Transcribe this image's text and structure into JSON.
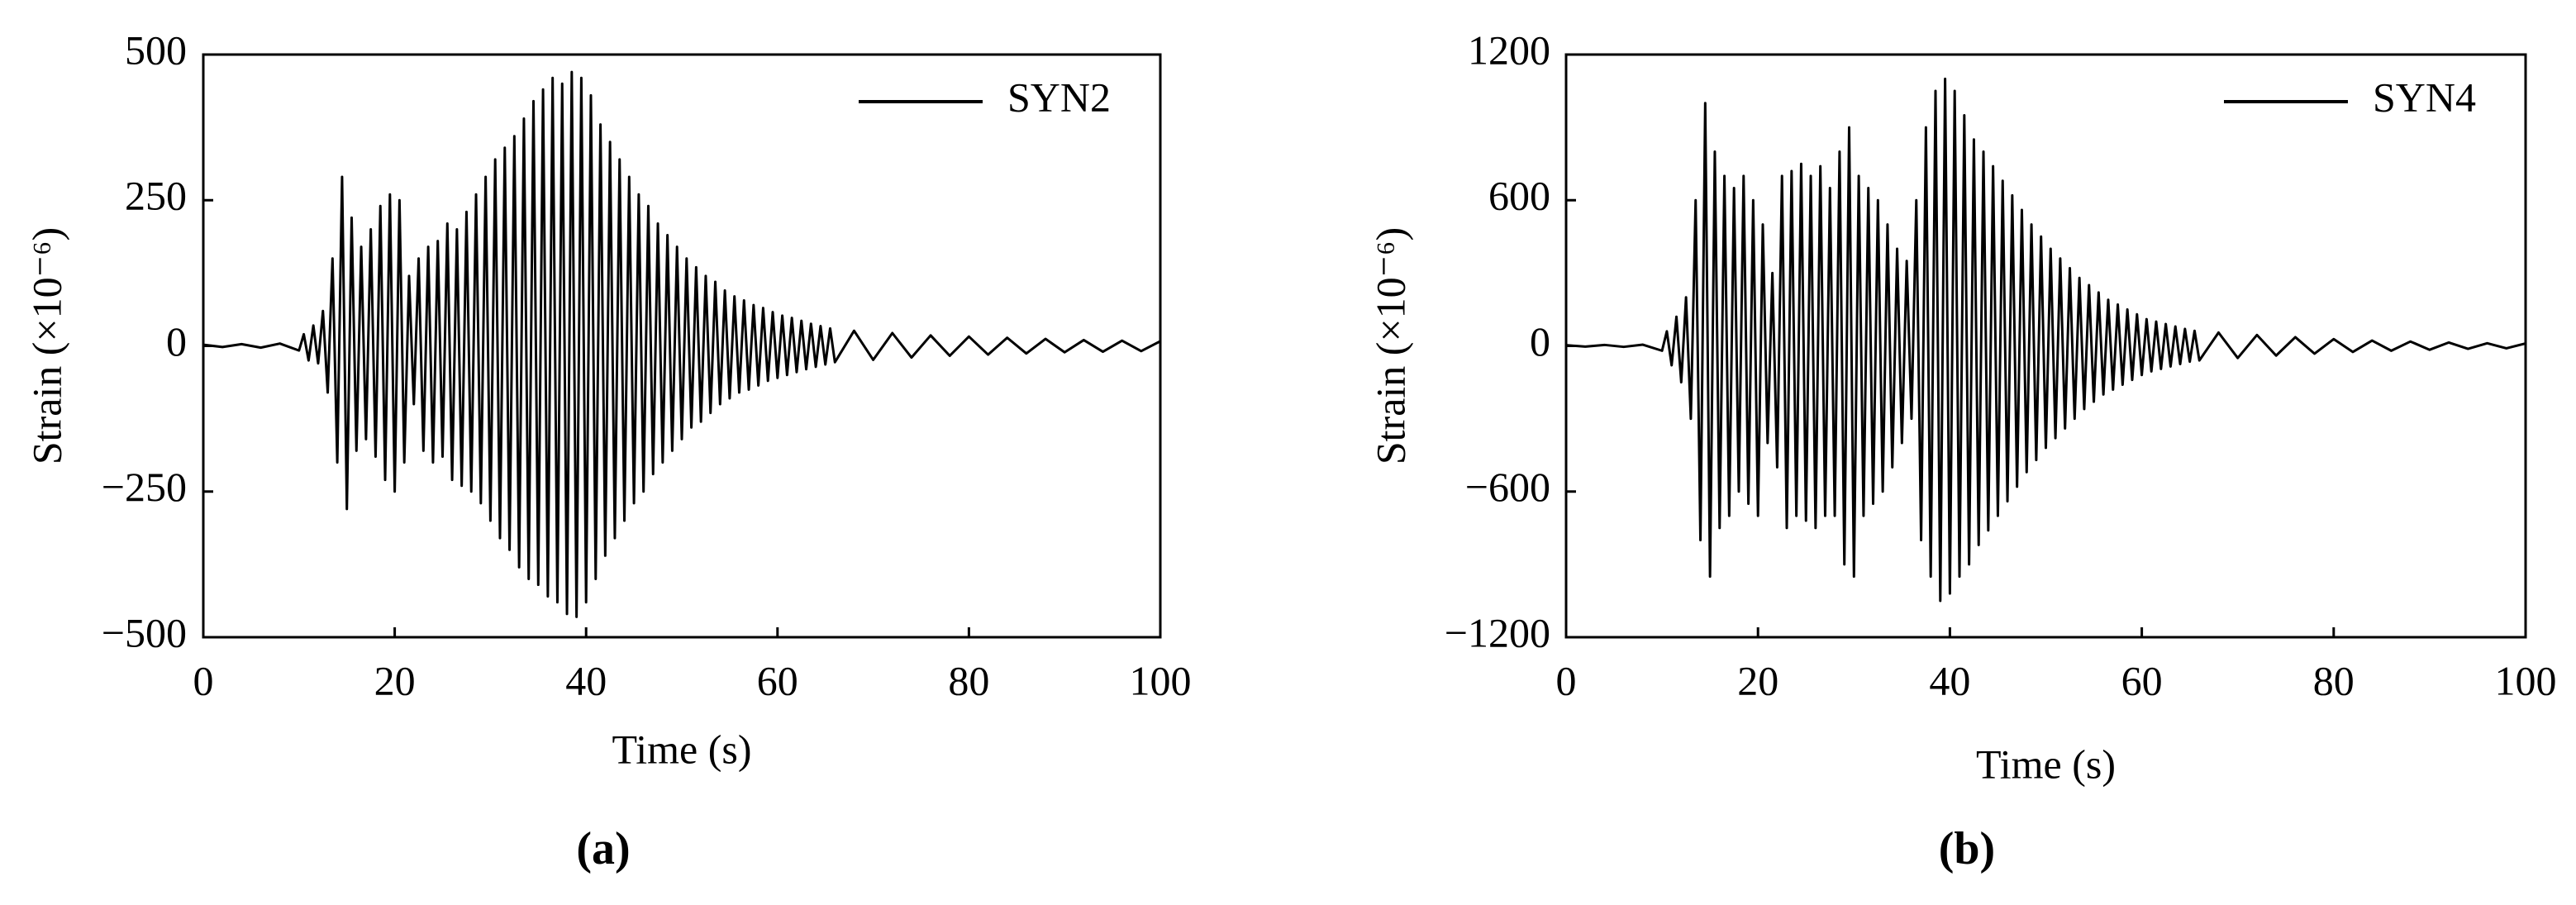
{
  "chart_data": [
    {
      "type": "line",
      "caption": "(a)",
      "x_label": "Time (s)",
      "y_label": "Strain (×10⁻⁶)",
      "xlim": [
        0,
        100
      ],
      "xticks": [
        0,
        20,
        40,
        60,
        80,
        100
      ],
      "ylim": [
        -500,
        500
      ],
      "yticks": [
        {
          "value": -500,
          "label": "−500"
        },
        {
          "value": -250,
          "label": "−250"
        },
        0,
        250,
        500
      ],
      "legend": "upper right",
      "grid": false,
      "x": [
        0,
        2,
        4,
        6,
        8,
        10,
        10.5,
        11,
        11.5,
        12,
        12.5,
        13,
        13.5,
        14,
        14.5,
        15,
        15.5,
        16,
        16.5,
        17,
        17.5,
        18,
        18.5,
        19,
        19.5,
        20,
        20.5,
        21,
        21.5,
        22,
        22.5,
        23,
        23.5,
        24,
        24.5,
        25,
        25.5,
        26,
        26.5,
        27,
        27.5,
        28,
        28.5,
        29,
        29.5,
        30,
        30.5,
        31,
        31.5,
        32,
        32.5,
        33,
        33.5,
        34,
        34.5,
        35,
        35.5,
        36,
        36.5,
        37,
        37.5,
        38,
        38.5,
        39,
        39.5,
        40,
        40.5,
        41,
        41.5,
        42,
        42.5,
        43,
        43.5,
        44,
        44.5,
        45,
        45.5,
        46,
        46.5,
        47,
        47.5,
        48,
        48.5,
        49,
        49.5,
        50,
        50.5,
        51,
        51.5,
        52,
        52.5,
        53,
        53.5,
        54,
        54.5,
        55,
        55.5,
        56,
        56.5,
        57,
        57.5,
        58,
        58.5,
        59,
        59.5,
        60,
        60.5,
        61,
        61.5,
        62,
        62.5,
        63,
        63.5,
        64,
        64.5,
        65,
        65.5,
        66,
        68,
        70,
        72,
        74,
        76,
        78,
        80,
        82,
        84,
        86,
        88,
        90,
        92,
        94,
        96,
        98,
        100
      ],
      "series": [
        {
          "name": "SYN2",
          "color": "#000000",
          "values": [
            2,
            -2,
            3,
            -3,
            4,
            -8,
            20,
            -25,
            35,
            -30,
            60,
            -80,
            150,
            -200,
            290,
            -280,
            220,
            -180,
            170,
            -160,
            200,
            -190,
            240,
            -230,
            260,
            -250,
            250,
            -200,
            120,
            -100,
            150,
            -180,
            170,
            -200,
            180,
            -190,
            210,
            -230,
            200,
            -240,
            230,
            -250,
            260,
            -270,
            290,
            -300,
            320,
            -330,
            340,
            -350,
            360,
            -380,
            390,
            -400,
            420,
            -410,
            440,
            -430,
            460,
            -440,
            450,
            -460,
            470,
            -465,
            460,
            -440,
            430,
            -400,
            380,
            -360,
            350,
            -330,
            320,
            -300,
            290,
            -270,
            260,
            -250,
            240,
            -220,
            210,
            -200,
            190,
            -180,
            170,
            -160,
            150,
            -140,
            135,
            -130,
            120,
            -115,
            110,
            -100,
            95,
            -90,
            85,
            -80,
            78,
            -75,
            70,
            -68,
            65,
            -60,
            58,
            -55,
            52,
            -50,
            48,
            -45,
            43,
            -40,
            38,
            -36,
            34,
            -32,
            30,
            -28,
            26,
            -24,
            22,
            -20,
            18,
            -17,
            16,
            -15,
            14,
            -13,
            12,
            -11,
            10,
            -10,
            9,
            -9,
            8
          ]
        }
      ]
    },
    {
      "type": "line",
      "caption": "(b)",
      "x_label": "Time (s)",
      "y_label": "Strain (×10⁻⁶)",
      "xlim": [
        0,
        100
      ],
      "xticks": [
        0,
        20,
        40,
        60,
        80,
        100
      ],
      "ylim": [
        -1200,
        1200
      ],
      "yticks": [
        {
          "value": -1200,
          "label": "−1200"
        },
        {
          "value": -600,
          "label": "−600"
        },
        0,
        600,
        1200
      ],
      "legend": "upper right",
      "grid": false,
      "x": [
        0,
        2,
        4,
        6,
        8,
        10,
        10.5,
        11,
        11.5,
        12,
        12.5,
        13,
        13.5,
        14,
        14.5,
        15,
        15.5,
        16,
        16.5,
        17,
        17.5,
        18,
        18.5,
        19,
        19.5,
        20,
        20.5,
        21,
        21.5,
        22,
        22.5,
        23,
        23.5,
        24,
        24.5,
        25,
        25.5,
        26,
        26.5,
        27,
        27.5,
        28,
        28.5,
        29,
        29.5,
        30,
        30.5,
        31,
        31.5,
        32,
        32.5,
        33,
        33.5,
        34,
        34.5,
        35,
        35.5,
        36,
        36.5,
        37,
        37.5,
        38,
        38.5,
        39,
        39.5,
        40,
        40.5,
        41,
        41.5,
        42,
        42.5,
        43,
        43.5,
        44,
        44.5,
        45,
        45.5,
        46,
        46.5,
        47,
        47.5,
        48,
        48.5,
        49,
        49.5,
        50,
        50.5,
        51,
        51.5,
        52,
        52.5,
        53,
        53.5,
        54,
        54.5,
        55,
        55.5,
        56,
        56.5,
        57,
        57.5,
        58,
        58.5,
        59,
        59.5,
        60,
        60.5,
        61,
        61.5,
        62,
        62.5,
        63,
        63.5,
        64,
        64.5,
        65,
        65.5,
        66,
        68,
        70,
        72,
        74,
        76,
        78,
        80,
        82,
        84,
        86,
        88,
        90,
        92,
        94,
        96,
        98,
        100
      ],
      "series": [
        {
          "name": "SYN4",
          "color": "#000000",
          "values": [
            3,
            -3,
            4,
            -4,
            5,
            -20,
            60,
            -80,
            120,
            -150,
            200,
            -300,
            600,
            -800,
            1000,
            -950,
            800,
            -750,
            700,
            -700,
            650,
            -600,
            700,
            -650,
            600,
            -700,
            500,
            -400,
            300,
            -500,
            700,
            -750,
            720,
            -700,
            750,
            -720,
            700,
            -750,
            740,
            -700,
            650,
            -700,
            800,
            -900,
            900,
            -950,
            700,
            -700,
            650,
            -650,
            600,
            -600,
            500,
            -500,
            400,
            -400,
            350,
            -300,
            600,
            -800,
            900,
            -950,
            1050,
            -1050,
            1100,
            -1020,
            1050,
            -950,
            950,
            -900,
            850,
            -820,
            800,
            -760,
            740,
            -700,
            680,
            -640,
            620,
            -580,
            560,
            -520,
            500,
            -470,
            450,
            -420,
            400,
            -380,
            360,
            -340,
            320,
            -300,
            280,
            -260,
            250,
            -230,
            220,
            -200,
            190,
            -180,
            170,
            -160,
            150,
            -140,
            130,
            -120,
            110,
            -105,
            100,
            -95,
            90,
            -85,
            80,
            -75,
            70,
            -65,
            62,
            -60,
            55,
            -50,
            45,
            -40,
            36,
            -32,
            28,
            -25,
            22,
            -20,
            18,
            -16,
            14,
            -12,
            11,
            -10,
            10
          ]
        }
      ]
    }
  ]
}
